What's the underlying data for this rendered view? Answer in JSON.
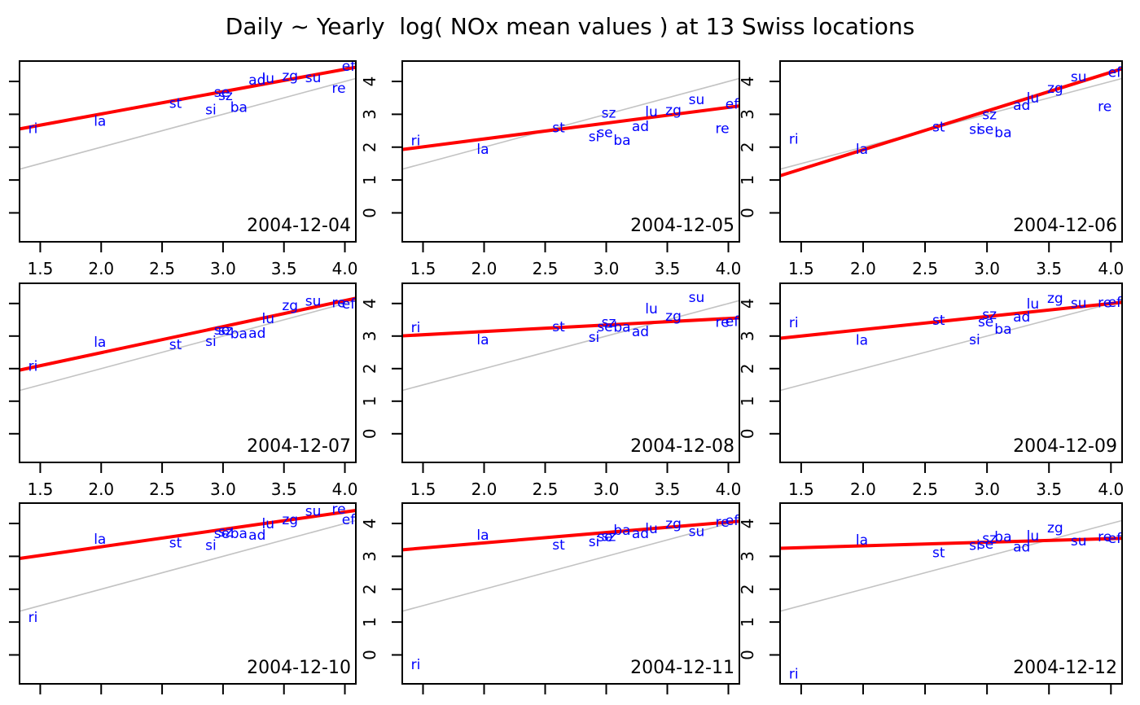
{
  "chart_data": {
    "type": "scatter",
    "title": "Daily ~ Yearly  log( NOx mean values ) at 13 Swiss locations",
    "xlabel": "",
    "ylabel": "",
    "x_ticks": [
      1.5,
      2.0,
      2.5,
      3.0,
      3.5,
      4.0
    ],
    "y_ticks": [
      0,
      1,
      2,
      3,
      4
    ],
    "x_range": [
      1.33,
      4.09
    ],
    "y_range": [
      -0.88,
      4.62
    ],
    "grid": false,
    "legend": "none",
    "colors": {
      "fit_line": "#ff0000",
      "identity_line": "#c3c3c3",
      "site_label": "#0000ff",
      "axis": "#000000",
      "background": "#ffffff"
    },
    "sites": [
      "ri",
      "la",
      "st",
      "si",
      "se",
      "sz",
      "ba",
      "ad",
      "lu",
      "zg",
      "su",
      "re",
      "ef"
    ],
    "sites_x": {
      "ri": 1.44,
      "la": 1.99,
      "st": 2.61,
      "si": 2.9,
      "se": 2.99,
      "sz": 3.02,
      "ba": 3.13,
      "ad": 3.28,
      "lu": 3.37,
      "zg": 3.55,
      "su": 3.74,
      "re": 3.95,
      "ef": 4.03
    },
    "reference_line": {
      "type": "identity",
      "slope": 1,
      "intercept": 0
    },
    "panels": [
      {
        "date": "2004-12-04",
        "fit": {
          "intercept": 1.65,
          "slope": 0.68
        },
        "y": {
          "ri": 2.58,
          "la": 2.8,
          "st": 3.35,
          "si": 3.15,
          "se": 3.68,
          "sz": 3.58,
          "ba": 3.22,
          "ad": 4.05,
          "lu": 4.1,
          "zg": 4.18,
          "su": 4.12,
          "re": 3.8,
          "ef": 4.47
        }
      },
      {
        "date": "2004-12-05",
        "fit": {
          "intercept": 1.29,
          "slope": 0.48
        },
        "y": {
          "ri": 2.2,
          "la": 1.95,
          "st": 2.6,
          "si": 2.33,
          "se": 2.45,
          "sz": 3.05,
          "ba": 2.22,
          "ad": 2.64,
          "lu": 3.08,
          "zg": 3.13,
          "su": 3.45,
          "re": 2.57,
          "ef": 3.32
        }
      },
      {
        "date": "2004-12-06",
        "fit": {
          "intercept": -0.44,
          "slope": 1.18
        },
        "y": {
          "ri": 2.25,
          "la": 1.95,
          "st": 2.62,
          "si": 2.55,
          "se": 2.55,
          "sz": 3.0,
          "ba": 2.45,
          "ad": 3.28,
          "lu": 3.5,
          "zg": 3.8,
          "su": 4.15,
          "re": 3.25,
          "ef": 4.28
        }
      },
      {
        "date": "2004-12-07",
        "fit": {
          "intercept": 0.89,
          "slope": 0.8
        },
        "y": {
          "ri": 2.08,
          "la": 2.82,
          "st": 2.75,
          "si": 2.85,
          "se": 3.2,
          "sz": 3.18,
          "ba": 3.08,
          "ad": 3.1,
          "lu": 3.55,
          "zg": 3.95,
          "su": 4.08,
          "re": 4.03,
          "ef": 4.0
        }
      },
      {
        "date": "2004-12-08",
        "fit": {
          "intercept": 2.74,
          "slope": 0.2
        },
        "y": {
          "ri": 3.27,
          "la": 2.9,
          "st": 3.3,
          "si": 2.97,
          "se": 3.3,
          "sz": 3.43,
          "ba": 3.28,
          "ad": 3.14,
          "lu": 3.84,
          "zg": 3.62,
          "su": 4.2,
          "re": 3.43,
          "ef": 3.46
        }
      },
      {
        "date": "2004-12-09",
        "fit": {
          "intercept": 2.4,
          "slope": 0.4
        },
        "y": {
          "ri": 3.42,
          "la": 2.88,
          "st": 3.5,
          "si": 2.9,
          "se": 3.45,
          "sz": 3.67,
          "ba": 3.22,
          "ad": 3.6,
          "lu": 4.0,
          "zg": 4.17,
          "su": 4.02,
          "re": 4.03,
          "ef": 4.04
        }
      },
      {
        "date": "2004-12-10",
        "fit": {
          "intercept": 2.23,
          "slope": 0.53
        },
        "y": {
          "ri": 1.15,
          "la": 3.53,
          "st": 3.42,
          "si": 3.35,
          "se": 3.7,
          "sz": 3.75,
          "ba": 3.7,
          "ad": 3.65,
          "lu": 4.0,
          "zg": 4.12,
          "su": 4.38,
          "re": 4.45,
          "ef": 4.12
        }
      },
      {
        "date": "2004-12-11",
        "fit": {
          "intercept": 2.78,
          "slope": 0.315
        },
        "y": {
          "ri": -0.28,
          "la": 3.65,
          "st": 3.36,
          "si": 3.45,
          "se": 3.6,
          "sz": 3.62,
          "ba": 3.8,
          "ad": 3.7,
          "lu": 3.85,
          "zg": 4.0,
          "su": 3.77,
          "re": 4.05,
          "ef": 4.1
        }
      },
      {
        "date": "2004-12-12",
        "fit": {
          "intercept": 3.1,
          "slope": 0.11
        },
        "y": {
          "ri": -0.57,
          "la": 3.5,
          "st": 3.12,
          "si": 3.35,
          "se": 3.38,
          "sz": 3.55,
          "ba": 3.6,
          "ad": 3.3,
          "lu": 3.63,
          "zg": 3.88,
          "su": 3.48,
          "re": 3.6,
          "ef": 3.55
        }
      }
    ],
    "axis_label_visibility": {
      "y_labels_left_of_columns": [
        2,
        3
      ],
      "x_labels_below_rows": [
        1,
        2
      ],
      "note": "column 1 y-tick labels and row 3 x-tick labels are clipped by the figure edge"
    }
  }
}
